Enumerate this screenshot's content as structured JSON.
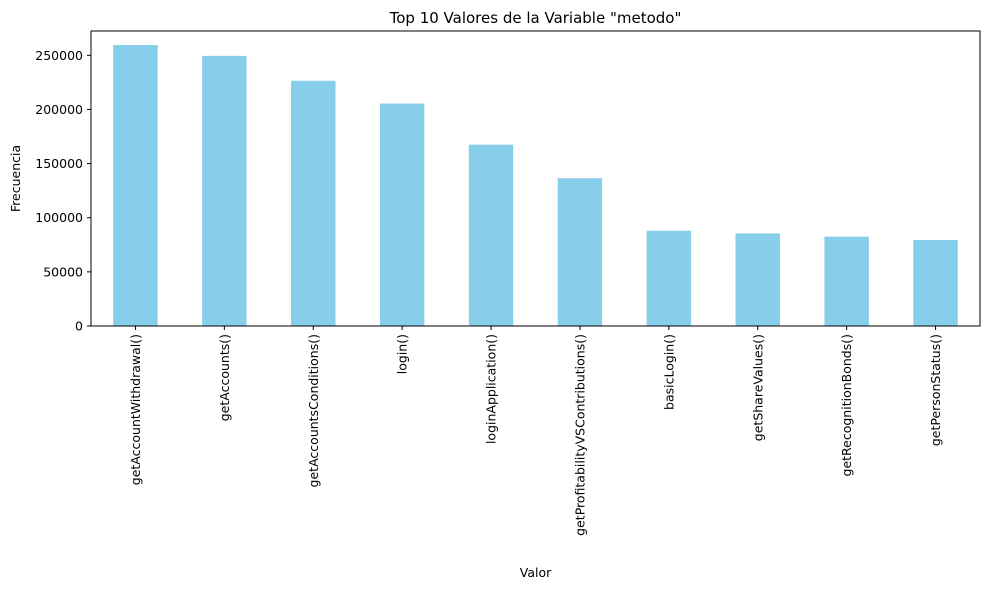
{
  "chart_data": {
    "type": "bar",
    "title": "Top 10 Valores de la Variable \"metodo\"",
    "xlabel": "Valor",
    "ylabel": "Frecuencia",
    "categories": [
      "getAccountWithdrawal()",
      "getAccounts()",
      "getAccountsConditions()",
      "login()",
      "loginApplication()",
      "getProfitabilityVSContributions()",
      "basicLogin()",
      "getShareValues()",
      "getRecognitionBonds()",
      "getPersonStatus()"
    ],
    "values": [
      259500,
      249500,
      226500,
      205500,
      167500,
      136500,
      88000,
      85500,
      82500,
      79500
    ],
    "yticks": [
      0,
      50000,
      100000,
      150000,
      200000,
      250000
    ],
    "ylim": [
      0,
      272475
    ],
    "bar_color": "#87ceeb",
    "grid": false,
    "legend": null
  }
}
